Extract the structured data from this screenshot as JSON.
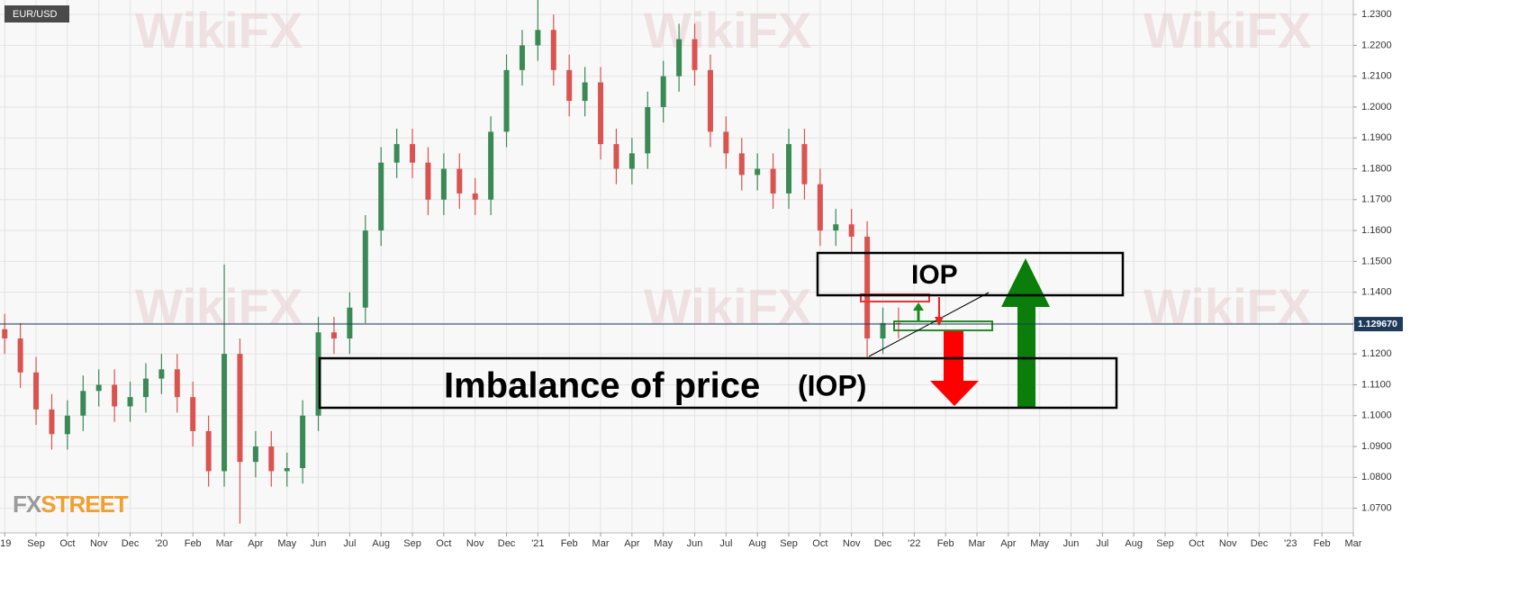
{
  "chart_data": {
    "type": "candlestick",
    "title": "EUR/USD",
    "watermark": "WikiFX",
    "logo": [
      "FX",
      "STREET"
    ],
    "annotations": [
      "IOP",
      "Imbalance of price",
      "(IOP)"
    ],
    "up_color": "#3b8a55",
    "down_color": "#d9534f",
    "grid": true,
    "x": [
      0,
      0.5,
      1,
      1.5,
      2,
      2.5,
      3,
      3.5,
      4,
      4.5,
      5,
      5.5,
      6,
      6.5,
      7,
      7.5,
      8,
      8.5,
      9,
      9.5,
      10,
      10.5,
      11,
      11.5,
      12,
      12.5,
      13,
      13.5,
      14,
      14.5,
      15,
      15.5,
      16,
      16.5,
      17,
      17.5,
      18,
      18.5,
      19,
      19.5,
      20,
      20.5,
      21,
      21.5,
      22,
      22.5,
      23,
      23.5,
      24,
      24.5,
      25,
      25.5,
      26,
      26.5,
      27,
      27.5,
      28,
      28.5
    ],
    "open": [
      1.128,
      1.125,
      1.114,
      1.102,
      1.094,
      1.1,
      1.108,
      1.11,
      1.103,
      1.106,
      1.112,
      1.115,
      1.106,
      1.095,
      1.082,
      1.12,
      1.085,
      1.09,
      1.082,
      1.083,
      1.1,
      1.127,
      1.125,
      1.135,
      1.16,
      1.182,
      1.188,
      1.182,
      1.17,
      1.18,
      1.172,
      1.17,
      1.192,
      1.212,
      1.22,
      1.225,
      1.212,
      1.202,
      1.208,
      1.188,
      1.18,
      1.185,
      1.2,
      1.21,
      1.222,
      1.212,
      1.192,
      1.185,
      1.178,
      1.18,
      1.172,
      1.188,
      1.175,
      1.16,
      1.162,
      1.158,
      1.125,
      1.13
    ],
    "high": [
      1.133,
      1.13,
      1.119,
      1.107,
      1.105,
      1.113,
      1.115,
      1.115,
      1.111,
      1.117,
      1.12,
      1.12,
      1.111,
      1.1,
      1.149,
      1.125,
      1.095,
      1.095,
      1.088,
      1.105,
      1.132,
      1.132,
      1.14,
      1.165,
      1.187,
      1.193,
      1.193,
      1.187,
      1.185,
      1.185,
      1.177,
      1.197,
      1.217,
      1.225,
      1.235,
      1.23,
      1.217,
      1.213,
      1.213,
      1.193,
      1.19,
      1.205,
      1.215,
      1.227,
      1.227,
      1.217,
      1.197,
      1.19,
      1.185,
      1.185,
      1.193,
      1.193,
      1.18,
      1.167,
      1.167,
      1.163,
      1.135,
      1.135
    ],
    "low": [
      1.12,
      1.109,
      1.097,
      1.089,
      1.089,
      1.095,
      1.103,
      1.098,
      1.098,
      1.101,
      1.107,
      1.101,
      1.09,
      1.077,
      1.077,
      1.065,
      1.08,
      1.077,
      1.077,
      1.078,
      1.095,
      1.12,
      1.12,
      1.13,
      1.155,
      1.177,
      1.177,
      1.165,
      1.165,
      1.167,
      1.165,
      1.165,
      1.187,
      1.207,
      1.215,
      1.207,
      1.197,
      1.197,
      1.183,
      1.175,
      1.175,
      1.18,
      1.195,
      1.205,
      1.207,
      1.187,
      1.18,
      1.173,
      1.173,
      1.167,
      1.167,
      1.17,
      1.155,
      1.155,
      1.153,
      1.119,
      1.12,
      1.125
    ],
    "close": [
      1.125,
      1.114,
      1.102,
      1.094,
      1.1,
      1.108,
      1.11,
      1.103,
      1.106,
      1.112,
      1.115,
      1.106,
      1.095,
      1.082,
      1.12,
      1.085,
      1.09,
      1.082,
      1.083,
      1.1,
      1.127,
      1.125,
      1.135,
      1.16,
      1.182,
      1.188,
      1.182,
      1.17,
      1.18,
      1.172,
      1.17,
      1.192,
      1.212,
      1.22,
      1.225,
      1.212,
      1.202,
      1.208,
      1.188,
      1.18,
      1.185,
      1.2,
      1.21,
      1.222,
      1.212,
      1.192,
      1.185,
      1.178,
      1.18,
      1.172,
      1.188,
      1.175,
      1.16,
      1.162,
      1.158,
      1.125,
      1.13,
      1.1297
    ],
    "last_price": {
      "value": 1.12967,
      "label": "1.129670"
    },
    "xlim": [
      -0.15,
      43
    ],
    "xticks": [
      {
        "value": 0,
        "label": "'19"
      },
      {
        "value": 1,
        "label": "Sep"
      },
      {
        "value": 2,
        "label": "Oct"
      },
      {
        "value": 3,
        "label": "Nov"
      },
      {
        "value": 4,
        "label": "Dec"
      },
      {
        "value": 5,
        "label": "'20"
      },
      {
        "value": 6,
        "label": "Feb"
      },
      {
        "value": 7,
        "label": "Mar"
      },
      {
        "value": 8,
        "label": "Apr"
      },
      {
        "value": 9,
        "label": "May"
      },
      {
        "value": 10,
        "label": "Jun"
      },
      {
        "value": 11,
        "label": "Jul"
      },
      {
        "value": 12,
        "label": "Aug"
      },
      {
        "value": 13,
        "label": "Sep"
      },
      {
        "value": 14,
        "label": "Oct"
      },
      {
        "value": 15,
        "label": "Nov"
      },
      {
        "value": 16,
        "label": "Dec"
      },
      {
        "value": 17,
        "label": "'21"
      },
      {
        "value": 18,
        "label": "Feb"
      },
      {
        "value": 19,
        "label": "Mar"
      },
      {
        "value": 20,
        "label": "Apr"
      },
      {
        "value": 21,
        "label": "May"
      },
      {
        "value": 22,
        "label": "Jun"
      },
      {
        "value": 23,
        "label": "Jul"
      },
      {
        "value": 24,
        "label": "Aug"
      },
      {
        "value": 25,
        "label": "Sep"
      },
      {
        "value": 26,
        "label": "Oct"
      },
      {
        "value": 27,
        "label": "Nov"
      },
      {
        "value": 28,
        "label": "Dec"
      },
      {
        "value": 29,
        "label": "'22"
      },
      {
        "value": 30,
        "label": "Feb"
      },
      {
        "value": 31,
        "label": "Mar"
      },
      {
        "value": 32,
        "label": "Apr"
      },
      {
        "value": 33,
        "label": "May"
      },
      {
        "value": 34,
        "label": "Jun"
      },
      {
        "value": 35,
        "label": "Jul"
      },
      {
        "value": 36,
        "label": "Aug"
      },
      {
        "value": 37,
        "label": "Sep"
      },
      {
        "value": 38,
        "label": "Oct"
      },
      {
        "value": 39,
        "label": "Nov"
      },
      {
        "value": 40,
        "label": "Dec"
      },
      {
        "value": 41,
        "label": "'23"
      },
      {
        "value": 42,
        "label": "Feb"
      },
      {
        "value": 43,
        "label": "Mar"
      }
    ],
    "ylim": [
      1.062,
      1.2347
    ],
    "yticks": [
      {
        "value": 1.07,
        "label": "1.0700"
      },
      {
        "value": 1.08,
        "label": "1.0800"
      },
      {
        "value": 1.09,
        "label": "1.0900"
      },
      {
        "value": 1.1,
        "label": "1.1000"
      },
      {
        "value": 1.11,
        "label": "1.1100"
      },
      {
        "value": 1.12,
        "label": "1.1200"
      },
      {
        "value": 1.13,
        "label": "1.1300"
      },
      {
        "value": 1.14,
        "label": "1.1400"
      },
      {
        "value": 1.15,
        "label": "1.1500"
      },
      {
        "value": 1.16,
        "label": "1.1600"
      },
      {
        "value": 1.17,
        "label": "1.1700"
      },
      {
        "value": 1.18,
        "label": "1.1800"
      },
      {
        "value": 1.19,
        "label": "1.1900"
      },
      {
        "value": 1.2,
        "label": "1.2000"
      },
      {
        "value": 1.21,
        "label": "1.2100"
      },
      {
        "value": 1.22,
        "label": "1.2200"
      },
      {
        "value": 1.23,
        "label": "1.2300"
      }
    ]
  }
}
